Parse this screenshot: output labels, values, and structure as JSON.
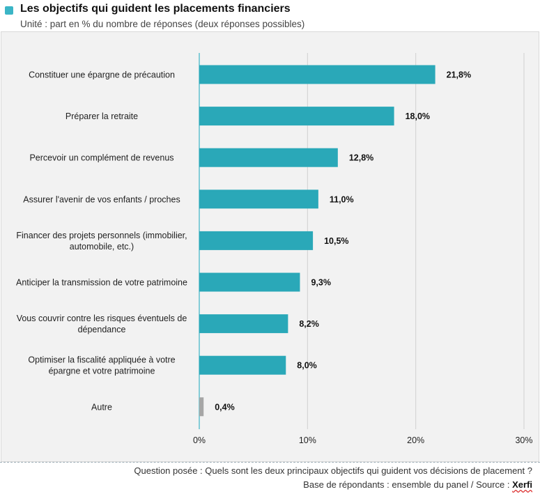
{
  "header": {
    "title": "Les objectifs qui guident les placements financiers",
    "subtitle": "Unité : part en % du nombre de réponses (deux réponses possibles)"
  },
  "footer": {
    "question": "Question posée : Quels sont les deux principaux objectifs qui guident vos décisions de placement ?",
    "base_prefix": "Base de répondants : ensemble du panel / Source : ",
    "brand": "Xerfi"
  },
  "colors": {
    "bar": "#2aa8b8",
    "bar_other": "#a6a6a6",
    "title_marker": "#3bb5c6",
    "gridline": "#d0d0d0",
    "axis": "#3bb5c6"
  },
  "chart_data": {
    "type": "bar",
    "orientation": "horizontal",
    "categories": [
      [
        "Constituer une épargne de précaution"
      ],
      [
        "Préparer la retraite"
      ],
      [
        "Percevoir un complément de revenus"
      ],
      [
        "Assurer l'avenir de vos enfants / proches"
      ],
      [
        "Financer des projets personnels (immobilier,",
        "automobile, etc.)"
      ],
      [
        "Anticiper la transmission de votre patrimoine"
      ],
      [
        "Vous couvrir contre les risques éventuels de",
        "dépendance"
      ],
      [
        "Optimiser la fiscalité appliquée à votre",
        "épargne et votre patrimoine"
      ],
      [
        "Autre"
      ]
    ],
    "values": [
      21.8,
      18.0,
      12.8,
      11.0,
      10.5,
      9.3,
      8.2,
      8.0,
      0.4
    ],
    "data_labels": [
      "21,8%",
      "18,0%",
      "12,8%",
      "11,0%",
      "10,5%",
      "9,3%",
      "8,2%",
      "8,0%",
      "0,4%"
    ],
    "xlim": [
      0,
      30
    ],
    "xticks": [
      0,
      10,
      20,
      30
    ],
    "xtick_labels": [
      "0%",
      "10%",
      "20%",
      "30%"
    ],
    "grid": true,
    "legend": "none"
  }
}
